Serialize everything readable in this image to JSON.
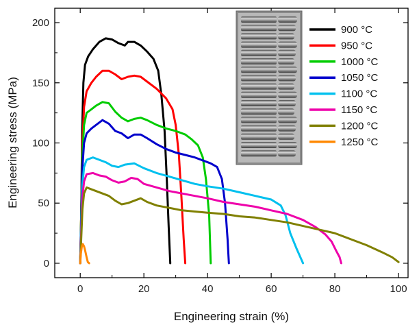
{
  "chart_data": {
    "type": "line",
    "title": "",
    "xlabel": "Engineering strain (%)",
    "ylabel": "Engineering stress (MPa)",
    "xlim": [
      -8,
      103
    ],
    "ylim": [
      -12,
      212
    ],
    "xticks": [
      0,
      20,
      40,
      60,
      80,
      100
    ],
    "yticks": [
      0,
      50,
      100,
      150,
      200
    ],
    "grid": false,
    "legend_position": "top-right",
    "inset_image": "photo of fractured tensile specimens",
    "series": [
      {
        "name": "900 °C",
        "color": "#000000",
        "points": [
          [
            0,
            0
          ],
          [
            0.3,
            40
          ],
          [
            0.6,
            110
          ],
          [
            1,
            150
          ],
          [
            1.5,
            165
          ],
          [
            2.5,
            172
          ],
          [
            4,
            178
          ],
          [
            6,
            184
          ],
          [
            8,
            187
          ],
          [
            10,
            186
          ],
          [
            12,
            183
          ],
          [
            14,
            181
          ],
          [
            15,
            184
          ],
          [
            17,
            184
          ],
          [
            19,
            181
          ],
          [
            21,
            176
          ],
          [
            23,
            170
          ],
          [
            24.5,
            160
          ],
          [
            25.5,
            140
          ],
          [
            26.5,
            110
          ],
          [
            27.2,
            70
          ],
          [
            27.8,
            30
          ],
          [
            28.3,
            0
          ]
        ]
      },
      {
        "name": "950 °C",
        "color": "#ff0000",
        "points": [
          [
            0,
            0
          ],
          [
            0.3,
            40
          ],
          [
            0.7,
            100
          ],
          [
            1.2,
            130
          ],
          [
            2,
            143
          ],
          [
            3.5,
            150
          ],
          [
            5,
            155
          ],
          [
            7,
            160
          ],
          [
            9,
            160
          ],
          [
            11,
            157
          ],
          [
            13,
            153
          ],
          [
            15,
            155
          ],
          [
            17,
            156
          ],
          [
            19,
            155
          ],
          [
            21,
            151
          ],
          [
            24,
            145
          ],
          [
            27,
            137
          ],
          [
            29,
            128
          ],
          [
            30,
            115
          ],
          [
            31,
            90
          ],
          [
            31.8,
            55
          ],
          [
            32.5,
            20
          ],
          [
            33,
            0
          ]
        ]
      },
      {
        "name": "1000 °C",
        "color": "#00cc00",
        "points": [
          [
            0,
            0
          ],
          [
            0.3,
            40
          ],
          [
            0.7,
            90
          ],
          [
            1.2,
            115
          ],
          [
            2,
            125
          ],
          [
            3.5,
            128
          ],
          [
            5,
            131
          ],
          [
            7,
            134
          ],
          [
            9,
            133
          ],
          [
            11,
            126
          ],
          [
            13,
            121
          ],
          [
            15,
            118
          ],
          [
            17,
            120
          ],
          [
            19,
            121
          ],
          [
            21,
            119
          ],
          [
            24,
            115
          ],
          [
            27,
            112
          ],
          [
            30,
            110
          ],
          [
            33,
            107
          ],
          [
            35,
            103
          ],
          [
            37,
            98
          ],
          [
            38.5,
            88
          ],
          [
            39.5,
            70
          ],
          [
            40.5,
            40
          ],
          [
            41,
            0
          ]
        ]
      },
      {
        "name": "1050 °C",
        "color": "#0000cc",
        "points": [
          [
            0,
            0
          ],
          [
            0.3,
            35
          ],
          [
            0.7,
            80
          ],
          [
            1.2,
            100
          ],
          [
            2,
            108
          ],
          [
            3.5,
            112
          ],
          [
            5,
            115
          ],
          [
            7,
            119
          ],
          [
            9,
            116
          ],
          [
            11,
            110
          ],
          [
            13,
            108
          ],
          [
            15,
            104
          ],
          [
            17,
            107
          ],
          [
            19,
            107
          ],
          [
            21,
            104
          ],
          [
            24,
            99
          ],
          [
            27,
            95
          ],
          [
            30,
            92
          ],
          [
            33,
            90
          ],
          [
            36,
            88
          ],
          [
            39,
            85
          ],
          [
            41,
            83
          ],
          [
            43,
            80
          ],
          [
            44.5,
            70
          ],
          [
            45.5,
            50
          ],
          [
            46.3,
            20
          ],
          [
            46.7,
            0
          ]
        ]
      },
      {
        "name": "1100 °C",
        "color": "#00c0ee",
        "points": [
          [
            0,
            0
          ],
          [
            0.3,
            30
          ],
          [
            0.7,
            65
          ],
          [
            1.2,
            80
          ],
          [
            2,
            86
          ],
          [
            4,
            88
          ],
          [
            6,
            86
          ],
          [
            8,
            84
          ],
          [
            10,
            81
          ],
          [
            12,
            80
          ],
          [
            14,
            82
          ],
          [
            17,
            83
          ],
          [
            20,
            79
          ],
          [
            24,
            75
          ],
          [
            28,
            72
          ],
          [
            32,
            69
          ],
          [
            36,
            66
          ],
          [
            40,
            64
          ],
          [
            45,
            62
          ],
          [
            50,
            59
          ],
          [
            55,
            56
          ],
          [
            60,
            53
          ],
          [
            63,
            48
          ],
          [
            64.5,
            40
          ],
          [
            66,
            25
          ],
          [
            68,
            12
          ],
          [
            70,
            0
          ]
        ]
      },
      {
        "name": "1150 °C",
        "color": "#ee00aa",
        "points": [
          [
            0,
            0
          ],
          [
            0.3,
            25
          ],
          [
            0.7,
            55
          ],
          [
            1.2,
            68
          ],
          [
            2,
            74
          ],
          [
            4,
            75
          ],
          [
            6,
            73
          ],
          [
            8,
            72
          ],
          [
            10,
            69
          ],
          [
            12,
            67
          ],
          [
            14,
            68
          ],
          [
            16,
            71
          ],
          [
            18,
            70
          ],
          [
            20,
            66
          ],
          [
            24,
            63
          ],
          [
            28,
            60
          ],
          [
            32,
            58
          ],
          [
            36,
            56
          ],
          [
            40,
            54
          ],
          [
            45,
            51
          ],
          [
            50,
            49
          ],
          [
            55,
            47
          ],
          [
            60,
            44
          ],
          [
            65,
            41
          ],
          [
            70,
            36
          ],
          [
            74,
            30
          ],
          [
            77,
            24
          ],
          [
            79,
            18
          ],
          [
            80.5,
            10
          ],
          [
            81.5,
            5
          ],
          [
            82,
            0
          ]
        ]
      },
      {
        "name": "1200 °C",
        "color": "#808000",
        "points": [
          [
            0,
            0
          ],
          [
            0.3,
            20
          ],
          [
            0.7,
            45
          ],
          [
            1.2,
            58
          ],
          [
            2,
            63
          ],
          [
            3,
            62
          ],
          [
            5,
            60
          ],
          [
            7,
            58
          ],
          [
            9,
            56
          ],
          [
            11,
            52
          ],
          [
            13,
            49
          ],
          [
            15,
            50
          ],
          [
            17,
            52
          ],
          [
            19,
            54
          ],
          [
            21,
            51
          ],
          [
            24,
            48
          ],
          [
            28,
            46
          ],
          [
            32,
            44
          ],
          [
            36,
            43
          ],
          [
            40,
            42
          ],
          [
            45,
            41
          ],
          [
            50,
            39
          ],
          [
            55,
            38
          ],
          [
            60,
            36
          ],
          [
            65,
            34
          ],
          [
            70,
            31
          ],
          [
            75,
            28
          ],
          [
            80,
            25
          ],
          [
            85,
            20
          ],
          [
            90,
            15
          ],
          [
            95,
            9
          ],
          [
            98,
            5
          ],
          [
            100,
            1
          ]
        ]
      },
      {
        "name": "1250 °C",
        "color": "#ff8800",
        "points": [
          [
            0,
            0
          ],
          [
            0.2,
            8
          ],
          [
            0.5,
            14
          ],
          [
            0.8,
            16
          ],
          [
            1.2,
            14
          ],
          [
            1.6,
            10
          ],
          [
            2,
            5
          ],
          [
            2.4,
            1
          ],
          [
            2.8,
            0
          ]
        ]
      }
    ]
  }
}
